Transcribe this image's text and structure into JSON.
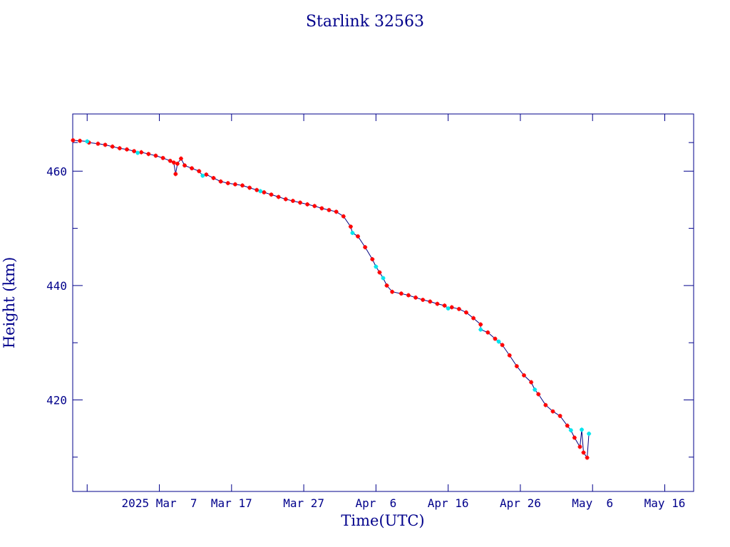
{
  "chart_data": {
    "type": "scatter",
    "title": "Starlink 32563",
    "xlabel": "Time(UTC)",
    "ylabel": "Height (km)",
    "x_range": [
      "2025-02-23",
      "2025-05-20"
    ],
    "ylim": [
      404,
      470
    ],
    "x_ticks": [
      {
        "date": "2025-02-25",
        "label": ""
      },
      {
        "date": "2025-03-07",
        "label": "2025 Mar  7"
      },
      {
        "date": "2025-03-17",
        "label": "Mar 17"
      },
      {
        "date": "2025-03-27",
        "label": "Mar 27"
      },
      {
        "date": "2025-04-06",
        "label": "Apr  6"
      },
      {
        "date": "2025-04-16",
        "label": "Apr 16"
      },
      {
        "date": "2025-04-26",
        "label": "Apr 26"
      },
      {
        "date": "2025-05-06",
        "label": "May  6"
      },
      {
        "date": "2025-05-16",
        "label": "May 16"
      }
    ],
    "y_major_ticks": [
      420,
      440,
      460
    ],
    "y_minor_ticks": [
      410,
      430,
      450,
      465
    ],
    "grid": false,
    "colors": {
      "frame": "#00008b",
      "text": "#00008b",
      "line": "#000080",
      "marker_main": "#ff0000",
      "marker_alt": "#00e5ee"
    },
    "series": [
      {
        "marker": "star",
        "color": "#ff0000",
        "points": [
          {
            "x": "2025-02-23 01:00",
            "y": 465.4
          },
          {
            "x": "2025-02-24 00:00",
            "y": 465.3
          },
          {
            "x": "2025-02-25 06:00",
            "y": 465.0
          },
          {
            "x": "2025-02-26 12:00",
            "y": 464.8
          },
          {
            "x": "2025-02-27 12:00",
            "y": 464.6
          },
          {
            "x": "2025-02-28 12:00",
            "y": 464.3
          },
          {
            "x": "2025-03-01 12:00",
            "y": 464.0
          },
          {
            "x": "2025-03-02 12:00",
            "y": 463.8
          },
          {
            "x": "2025-03-03 12:00",
            "y": 463.5
          },
          {
            "x": "2025-03-04 12:00",
            "y": 463.3
          },
          {
            "x": "2025-03-05 12:00",
            "y": 463.0
          },
          {
            "x": "2025-03-06 12:00",
            "y": 462.7
          },
          {
            "x": "2025-03-07 12:00",
            "y": 462.3
          },
          {
            "x": "2025-03-08 12:00",
            "y": 461.8
          },
          {
            "x": "2025-03-09 00:00",
            "y": 461.5
          },
          {
            "x": "2025-03-09 06:00",
            "y": 459.5
          },
          {
            "x": "2025-03-09 12:00",
            "y": 461.3
          },
          {
            "x": "2025-03-10 00:00",
            "y": 462.2
          },
          {
            "x": "2025-03-10 12:00",
            "y": 461.0
          },
          {
            "x": "2025-03-11 12:00",
            "y": 460.5
          },
          {
            "x": "2025-03-12 12:00",
            "y": 460.0
          },
          {
            "x": "2025-03-13 12:00",
            "y": 459.4
          },
          {
            "x": "2025-03-14 12:00",
            "y": 458.8
          },
          {
            "x": "2025-03-15 12:00",
            "y": 458.2
          },
          {
            "x": "2025-03-16 12:00",
            "y": 457.9
          },
          {
            "x": "2025-03-17 12:00",
            "y": 457.7
          },
          {
            "x": "2025-03-18 12:00",
            "y": 457.5
          },
          {
            "x": "2025-03-19 12:00",
            "y": 457.1
          },
          {
            "x": "2025-03-20 12:00",
            "y": 456.7
          },
          {
            "x": "2025-03-21 12:00",
            "y": 456.3
          },
          {
            "x": "2025-03-22 12:00",
            "y": 455.9
          },
          {
            "x": "2025-03-23 12:00",
            "y": 455.5
          },
          {
            "x": "2025-03-24 12:00",
            "y": 455.1
          },
          {
            "x": "2025-03-25 12:00",
            "y": 454.8
          },
          {
            "x": "2025-03-26 12:00",
            "y": 454.5
          },
          {
            "x": "2025-03-27 12:00",
            "y": 454.2
          },
          {
            "x": "2025-03-28 12:00",
            "y": 453.9
          },
          {
            "x": "2025-03-29 12:00",
            "y": 453.5
          },
          {
            "x": "2025-03-30 12:00",
            "y": 453.2
          },
          {
            "x": "2025-03-31 12:00",
            "y": 452.9
          },
          {
            "x": "2025-04-01 12:00",
            "y": 452.1
          },
          {
            "x": "2025-04-02 12:00",
            "y": 450.3
          },
          {
            "x": "2025-04-03 12:00",
            "y": 448.6
          },
          {
            "x": "2025-04-04 12:00",
            "y": 446.7
          },
          {
            "x": "2025-04-05 12:00",
            "y": 444.6
          },
          {
            "x": "2025-04-06 12:00",
            "y": 442.3
          },
          {
            "x": "2025-04-07 12:00",
            "y": 440.0
          },
          {
            "x": "2025-04-08 06:00",
            "y": 438.9
          },
          {
            "x": "2025-04-09 12:00",
            "y": 438.6
          },
          {
            "x": "2025-04-10 12:00",
            "y": 438.3
          },
          {
            "x": "2025-04-11 12:00",
            "y": 437.9
          },
          {
            "x": "2025-04-12 12:00",
            "y": 437.5
          },
          {
            "x": "2025-04-13 12:00",
            "y": 437.2
          },
          {
            "x": "2025-04-14 12:00",
            "y": 436.8
          },
          {
            "x": "2025-04-15 12:00",
            "y": 436.5
          },
          {
            "x": "2025-04-16 12:00",
            "y": 436.2
          },
          {
            "x": "2025-04-17 12:00",
            "y": 435.9
          },
          {
            "x": "2025-04-18 12:00",
            "y": 435.3
          },
          {
            "x": "2025-04-19 12:00",
            "y": 434.3
          },
          {
            "x": "2025-04-20 12:00",
            "y": 433.2
          },
          {
            "x": "2025-04-21 12:00",
            "y": 431.8
          },
          {
            "x": "2025-04-22 12:00",
            "y": 430.7
          },
          {
            "x": "2025-04-23 12:00",
            "y": 429.6
          },
          {
            "x": "2025-04-24 12:00",
            "y": 427.8
          },
          {
            "x": "2025-04-25 12:00",
            "y": 425.9
          },
          {
            "x": "2025-04-26 12:00",
            "y": 424.3
          },
          {
            "x": "2025-04-27 12:00",
            "y": 423.1
          },
          {
            "x": "2025-04-28 12:00",
            "y": 421.0
          },
          {
            "x": "2025-04-29 12:00",
            "y": 419.1
          },
          {
            "x": "2025-04-30 12:00",
            "y": 418.0
          },
          {
            "x": "2025-05-01 12:00",
            "y": 417.2
          },
          {
            "x": "2025-05-02 12:00",
            "y": 415.5
          },
          {
            "x": "2025-05-03 12:00",
            "y": 413.4
          },
          {
            "x": "2025-05-04 06:00",
            "y": 411.8
          },
          {
            "x": "2025-05-04 18:00",
            "y": 410.8
          },
          {
            "x": "2025-05-05 06:00",
            "y": 409.9
          }
        ]
      },
      {
        "marker": "star",
        "color": "#00e5ee",
        "points": [
          {
            "x": "2025-02-25 00:00",
            "y": 465.2
          },
          {
            "x": "2025-03-04 00:00",
            "y": 463.2
          },
          {
            "x": "2025-03-13 00:00",
            "y": 459.2
          },
          {
            "x": "2025-03-21 00:00",
            "y": 456.5
          },
          {
            "x": "2025-04-02 18:00",
            "y": 449.2
          },
          {
            "x": "2025-04-06 00:00",
            "y": 443.3
          },
          {
            "x": "2025-04-07 00:00",
            "y": 441.3
          },
          {
            "x": "2025-04-16 00:00",
            "y": 436.0
          },
          {
            "x": "2025-04-20 12:00",
            "y": 432.3
          },
          {
            "x": "2025-04-23 00:00",
            "y": 430.2
          },
          {
            "x": "2025-04-28 00:00",
            "y": 421.8
          },
          {
            "x": "2025-05-03 00:00",
            "y": 414.7
          },
          {
            "x": "2025-05-04 12:00",
            "y": 414.8
          },
          {
            "x": "2025-05-05 12:00",
            "y": 414.1
          }
        ]
      }
    ]
  }
}
